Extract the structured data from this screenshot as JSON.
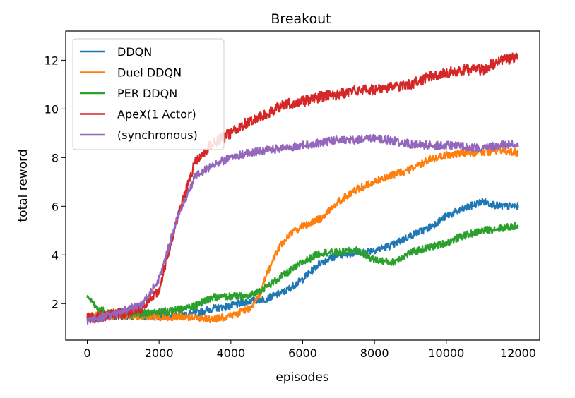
{
  "chart_data": {
    "type": "line",
    "title": "Breakout",
    "xlabel": "episodes",
    "ylabel": "total reword",
    "xlim": [
      -600,
      12600
    ],
    "ylim": [
      0.5,
      13.2
    ],
    "xticks": [
      0,
      2000,
      4000,
      6000,
      8000,
      10000,
      12000
    ],
    "yticks": [
      2,
      4,
      6,
      8,
      10,
      12
    ],
    "grid": false,
    "legend": "upper-left",
    "series": [
      {
        "name": "DDQN",
        "color": "#1f77b4",
        "noise": 0.15,
        "points": [
          [
            0,
            1.35
          ],
          [
            500,
            1.45
          ],
          [
            1000,
            1.5
          ],
          [
            2000,
            1.45
          ],
          [
            3000,
            1.6
          ],
          [
            3500,
            1.8
          ],
          [
            4000,
            1.9
          ],
          [
            4500,
            2.1
          ],
          [
            5000,
            2.2
          ],
          [
            5500,
            2.5
          ],
          [
            6000,
            3.0
          ],
          [
            6500,
            3.7
          ],
          [
            7000,
            4.0
          ],
          [
            7500,
            4.1
          ],
          [
            8000,
            4.2
          ],
          [
            8500,
            4.4
          ],
          [
            9000,
            4.8
          ],
          [
            9500,
            5.1
          ],
          [
            10000,
            5.6
          ],
          [
            10500,
            5.9
          ],
          [
            11000,
            6.2
          ],
          [
            11500,
            6.0
          ],
          [
            12000,
            6.0
          ]
        ]
      },
      {
        "name": "Duel DDQN",
        "color": "#ff7f0e",
        "noise": 0.15,
        "points": [
          [
            0,
            1.5
          ],
          [
            500,
            1.55
          ],
          [
            1000,
            1.5
          ],
          [
            2000,
            1.45
          ],
          [
            3000,
            1.45
          ],
          [
            3500,
            1.35
          ],
          [
            4000,
            1.5
          ],
          [
            4500,
            1.8
          ],
          [
            4800,
            2.3
          ],
          [
            5000,
            3.2
          ],
          [
            5300,
            4.2
          ],
          [
            5600,
            4.8
          ],
          [
            6000,
            5.2
          ],
          [
            6500,
            5.5
          ],
          [
            7000,
            6.2
          ],
          [
            7500,
            6.7
          ],
          [
            8000,
            7.0
          ],
          [
            8500,
            7.3
          ],
          [
            9000,
            7.5
          ],
          [
            9500,
            7.9
          ],
          [
            10000,
            8.1
          ],
          [
            10500,
            8.2
          ],
          [
            11000,
            8.2
          ],
          [
            11500,
            8.3
          ],
          [
            12000,
            8.2
          ]
        ]
      },
      {
        "name": "PER DDQN",
        "color": "#2ca02c",
        "noise": 0.15,
        "points": [
          [
            0,
            2.3
          ],
          [
            200,
            1.9
          ],
          [
            500,
            1.65
          ],
          [
            1000,
            1.55
          ],
          [
            1500,
            1.6
          ],
          [
            2000,
            1.65
          ],
          [
            2500,
            1.75
          ],
          [
            3000,
            1.9
          ],
          [
            3500,
            2.25
          ],
          [
            4000,
            2.3
          ],
          [
            4500,
            2.3
          ],
          [
            5000,
            2.7
          ],
          [
            5500,
            3.2
          ],
          [
            6000,
            3.7
          ],
          [
            6500,
            4.1
          ],
          [
            7000,
            4.1
          ],
          [
            7500,
            4.2
          ],
          [
            8000,
            3.8
          ],
          [
            8500,
            3.7
          ],
          [
            9000,
            4.1
          ],
          [
            9500,
            4.3
          ],
          [
            10000,
            4.5
          ],
          [
            10500,
            4.8
          ],
          [
            11000,
            5.0
          ],
          [
            11500,
            5.1
          ],
          [
            12000,
            5.2
          ]
        ]
      },
      {
        "name": "ApeX(1 Actor)",
        "color": "#d62728",
        "noise": 0.22,
        "points": [
          [
            0,
            1.4
          ],
          [
            500,
            1.5
          ],
          [
            1000,
            1.6
          ],
          [
            1500,
            1.8
          ],
          [
            2000,
            2.6
          ],
          [
            2500,
            5.5
          ],
          [
            3000,
            7.8
          ],
          [
            3500,
            8.6
          ],
          [
            4000,
            9.0
          ],
          [
            4500,
            9.5
          ],
          [
            5000,
            9.8
          ],
          [
            5500,
            10.2
          ],
          [
            6000,
            10.3
          ],
          [
            6500,
            10.5
          ],
          [
            7000,
            10.6
          ],
          [
            7500,
            10.8
          ],
          [
            8000,
            10.8
          ],
          [
            8500,
            10.9
          ],
          [
            9000,
            11.0
          ],
          [
            9500,
            11.3
          ],
          [
            10000,
            11.5
          ],
          [
            10500,
            11.6
          ],
          [
            11000,
            11.6
          ],
          [
            11500,
            12.0
          ],
          [
            12000,
            12.1
          ]
        ]
      },
      {
        "name": "(synchronous)",
        "color": "#9467bd",
        "noise": 0.17,
        "points": [
          [
            0,
            1.3
          ],
          [
            500,
            1.45
          ],
          [
            1000,
            1.7
          ],
          [
            1500,
            1.95
          ],
          [
            2000,
            3.0
          ],
          [
            2500,
            5.5
          ],
          [
            3000,
            7.2
          ],
          [
            3500,
            7.7
          ],
          [
            4000,
            8.0
          ],
          [
            4500,
            8.2
          ],
          [
            5000,
            8.3
          ],
          [
            5500,
            8.4
          ],
          [
            6000,
            8.5
          ],
          [
            6500,
            8.6
          ],
          [
            7000,
            8.75
          ],
          [
            7500,
            8.7
          ],
          [
            8000,
            8.8
          ],
          [
            8500,
            8.7
          ],
          [
            9000,
            8.55
          ],
          [
            9500,
            8.5
          ],
          [
            10000,
            8.5
          ],
          [
            10500,
            8.45
          ],
          [
            11000,
            8.4
          ],
          [
            11500,
            8.5
          ],
          [
            12000,
            8.6
          ]
        ]
      }
    ]
  }
}
